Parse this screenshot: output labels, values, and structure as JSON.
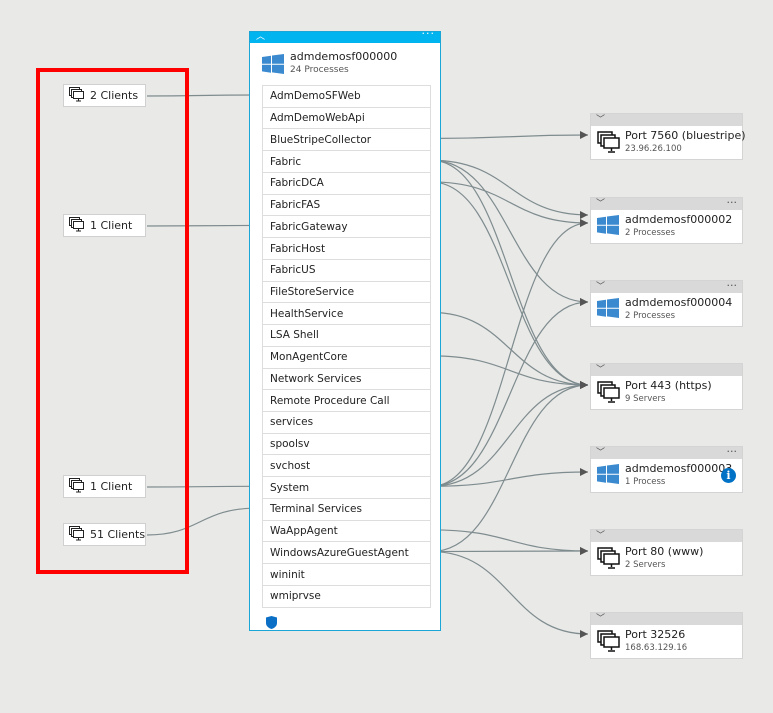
{
  "clients": [
    {
      "label": "2 Clients"
    },
    {
      "label": "1 Client"
    },
    {
      "label": "1 Client"
    },
    {
      "label": "51 Clients"
    }
  ],
  "machine": {
    "name": "admdemosf000000",
    "subtitle": "24 Processes",
    "header_color": "#00b4f0",
    "processes": [
      "AdmDemoSFWeb",
      "AdmDemoWebApi",
      "BlueStripeCollector",
      "Fabric",
      "FabricDCA",
      "FabricFAS",
      "FabricGateway",
      "FabricHost",
      "FabricUS",
      "FileStoreService",
      "HealthService",
      "LSA Shell",
      "MonAgentCore",
      "Network Services",
      "Remote Procedure Call",
      "services",
      "spoolsv",
      "svchost",
      "System",
      "Terminal Services",
      "WaAppAgent",
      "WindowsAzureGuestAgent",
      "wininit",
      "wmiprvse"
    ]
  },
  "remotes": [
    {
      "title": "Port 7560 (bluestripe)",
      "subtitle": "23.96.26.100",
      "icon": "server-group-icon"
    },
    {
      "title": "admdemosf000002",
      "subtitle": "2 Processes",
      "icon": "windows-icon",
      "more": "..."
    },
    {
      "title": "admdemosf000004",
      "subtitle": "2 Processes",
      "icon": "windows-icon",
      "more": "..."
    },
    {
      "title": "Port 443 (https)",
      "subtitle": "9 Servers",
      "icon": "server-group-icon"
    },
    {
      "title": "admdemosf000003",
      "subtitle": "1 Process",
      "icon": "windows-icon",
      "more": "...",
      "info": "i"
    },
    {
      "title": "Port 80 (www)",
      "subtitle": "2 Servers",
      "icon": "server-group-icon"
    },
    {
      "title": "Port 32526",
      "subtitle": "168.63.129.16",
      "icon": "server-group-icon"
    }
  ],
  "colors": {
    "highlight": "#ff0000",
    "accent": "#00b4f0",
    "edge": "#7f8c8f"
  }
}
